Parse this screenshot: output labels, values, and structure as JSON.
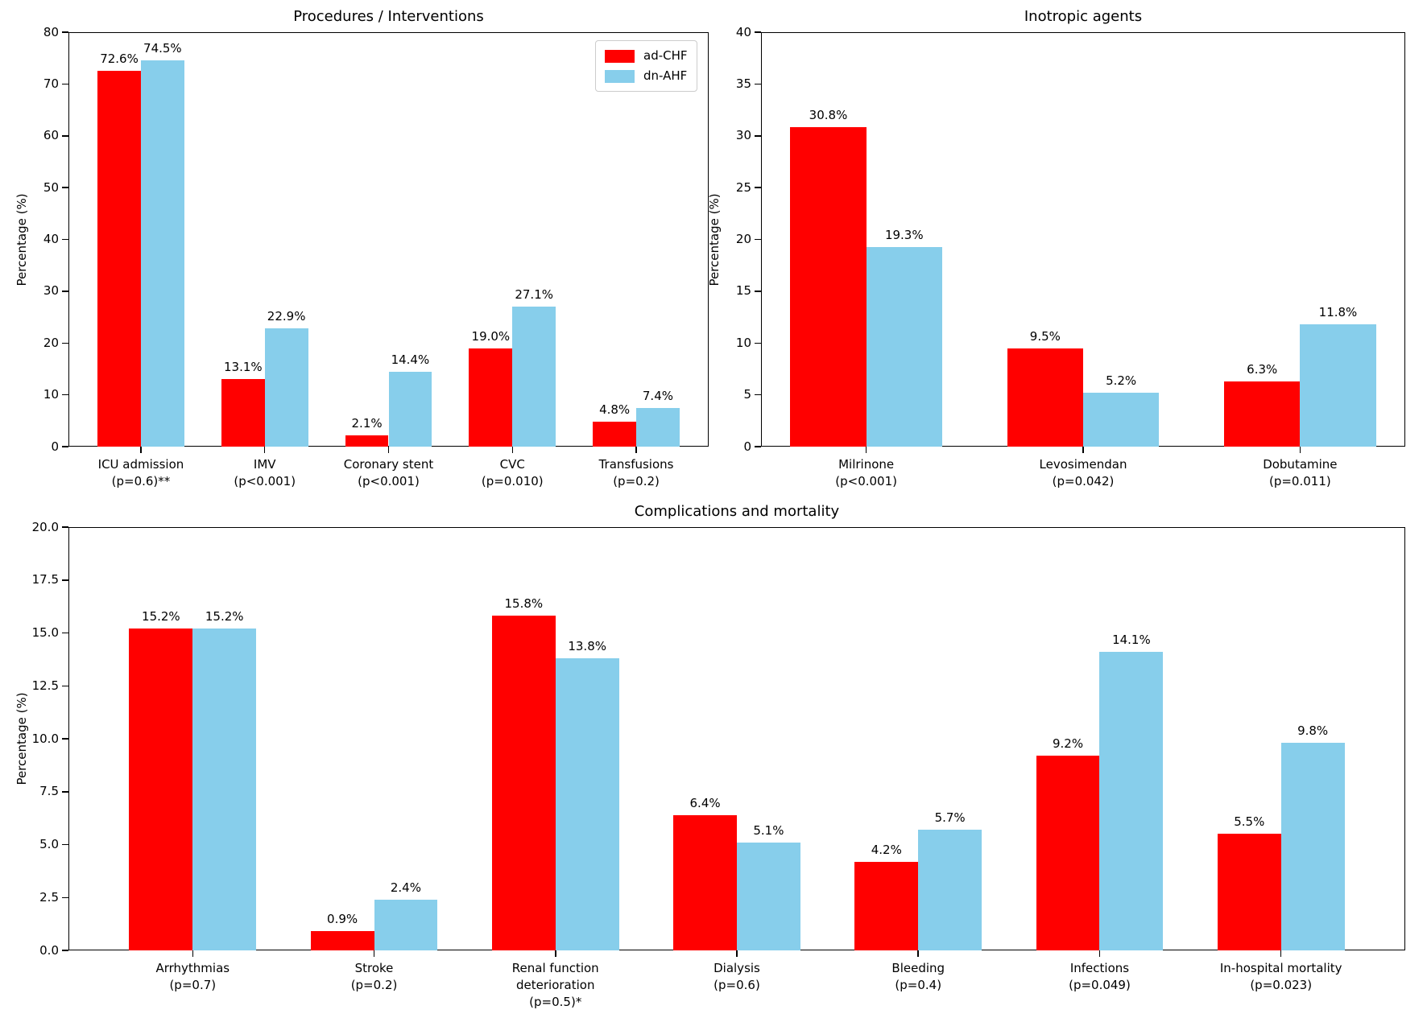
{
  "figure": {
    "background": "#ffffff",
    "text_color": "#000000",
    "series_colors": {
      "ad_chf": "#ff0000",
      "dn_ahf": "#87ceeb"
    }
  },
  "chart_data": [
    {
      "id": "procedures-interventions",
      "type": "bar",
      "title": "Procedures / Interventions",
      "xlabel": "",
      "ylabel": "Percentage (%)",
      "ylim": [
        0,
        80
      ],
      "ytick_labels": [
        "0",
        "10",
        "20",
        "30",
        "40",
        "50",
        "60",
        "70",
        "80"
      ],
      "grid": false,
      "legend": true,
      "legend_position": "upper right",
      "categories": [
        [
          "ICU admission",
          "(p=0.6)**"
        ],
        [
          "IMV",
          "(p<0.001)"
        ],
        [
          "Coronary stent",
          "(p<0.001)"
        ],
        [
          "CVC",
          "(p=0.010)"
        ],
        [
          "Transfusions",
          "(p=0.2)"
        ]
      ],
      "series": [
        {
          "name": "ad-CHF",
          "color": "#ff0000",
          "values": [
            72.6,
            13.1,
            2.1,
            19.0,
            4.8
          ],
          "labels": [
            "72.6%",
            "13.1%",
            "2.1%",
            "19.0%",
            "4.8%"
          ]
        },
        {
          "name": "dn-AHF",
          "color": "#87ceeb",
          "values": [
            74.5,
            22.9,
            14.4,
            27.1,
            7.4
          ],
          "labels": [
            "74.5%",
            "22.9%",
            "14.4%",
            "27.1%",
            "7.4%"
          ]
        }
      ]
    },
    {
      "id": "inotropic-agents",
      "type": "bar",
      "title": "Inotropic agents",
      "xlabel": "",
      "ylabel": "Percentage (%)",
      "ylim": [
        0,
        40
      ],
      "ytick_labels": [
        "0",
        "5",
        "10",
        "15",
        "20",
        "25",
        "30",
        "35",
        "40"
      ],
      "grid": false,
      "legend": false,
      "legend_position": null,
      "categories": [
        [
          "Milrinone",
          "(p<0.001)"
        ],
        [
          "Levosimendan",
          "(p=0.042)"
        ],
        [
          "Dobutamine",
          "(p=0.011)"
        ]
      ],
      "series": [
        {
          "name": "ad-CHF",
          "color": "#ff0000",
          "values": [
            30.8,
            9.5,
            6.3
          ],
          "labels": [
            "30.8%",
            "9.5%",
            "6.3%"
          ]
        },
        {
          "name": "dn-AHF",
          "color": "#87ceeb",
          "values": [
            19.3,
            5.2,
            11.8
          ],
          "labels": [
            "19.3%",
            "5.2%",
            "11.8%"
          ]
        }
      ]
    },
    {
      "id": "complications-mortality",
      "type": "bar",
      "title": "Complications and mortality",
      "xlabel": "",
      "ylabel": "Percentage (%)",
      "ylim": [
        0,
        20
      ],
      "ytick_labels": [
        "0.0",
        "2.5",
        "5.0",
        "7.5",
        "10.0",
        "12.5",
        "15.0",
        "17.5",
        "20.0"
      ],
      "grid": false,
      "legend": false,
      "legend_position": null,
      "categories": [
        [
          "Arrhythmias",
          "(p=0.7)"
        ],
        [
          "Stroke",
          "(p=0.2)"
        ],
        [
          "Renal function",
          "deterioration",
          "(p=0.5)*"
        ],
        [
          "Dialysis",
          "(p=0.6)"
        ],
        [
          "Bleeding",
          "(p=0.4)"
        ],
        [
          "Infections",
          "(p=0.049)"
        ],
        [
          "In-hospital mortality",
          "(p=0.023)"
        ]
      ],
      "series": [
        {
          "name": "ad-CHF",
          "color": "#ff0000",
          "values": [
            15.2,
            0.9,
            15.8,
            6.4,
            4.2,
            9.2,
            5.5
          ],
          "labels": [
            "15.2%",
            "0.9%",
            "15.8%",
            "6.4%",
            "4.2%",
            "9.2%",
            "5.5%"
          ]
        },
        {
          "name": "dn-AHF",
          "color": "#87ceeb",
          "values": [
            15.2,
            2.4,
            13.8,
            5.1,
            5.7,
            14.1,
            9.8
          ],
          "labels": [
            "15.2%",
            "2.4%",
            "13.8%",
            "5.1%",
            "5.7%",
            "14.1%",
            "9.8%"
          ]
        }
      ]
    }
  ]
}
